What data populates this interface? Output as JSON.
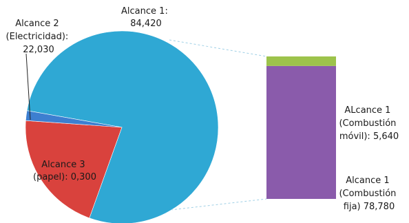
{
  "chart_data": {
    "type": "pie",
    "subtype": "bar-of-pie",
    "pie": {
      "slices": [
        {
          "label_lines": [
            "Alcance 1:",
            "84,420"
          ],
          "value": 84420,
          "color": "#2fa8d4"
        },
        {
          "label_lines": [
            "Alcance 2",
            "(Electricidad):",
            "22,030"
          ],
          "value": 22030,
          "color": "#d9423d"
        },
        {
          "label_lines": [
            "Alcance 3",
            "(papel): 0,300"
          ],
          "value": 300,
          "color": "#3d7fd0"
        }
      ]
    },
    "bar": {
      "segments": [
        {
          "label_lines": [
            "ALcance 1",
            "(Combustión",
            "móvil): 5,640"
          ],
          "value": 5640,
          "color": "#9dc34b"
        },
        {
          "label_lines": [
            "Alcance 1",
            "(Combustión",
            "fija) 78,780"
          ],
          "value": 78780,
          "color": "#8a5bab"
        }
      ]
    },
    "title": "",
    "legend": "none"
  }
}
